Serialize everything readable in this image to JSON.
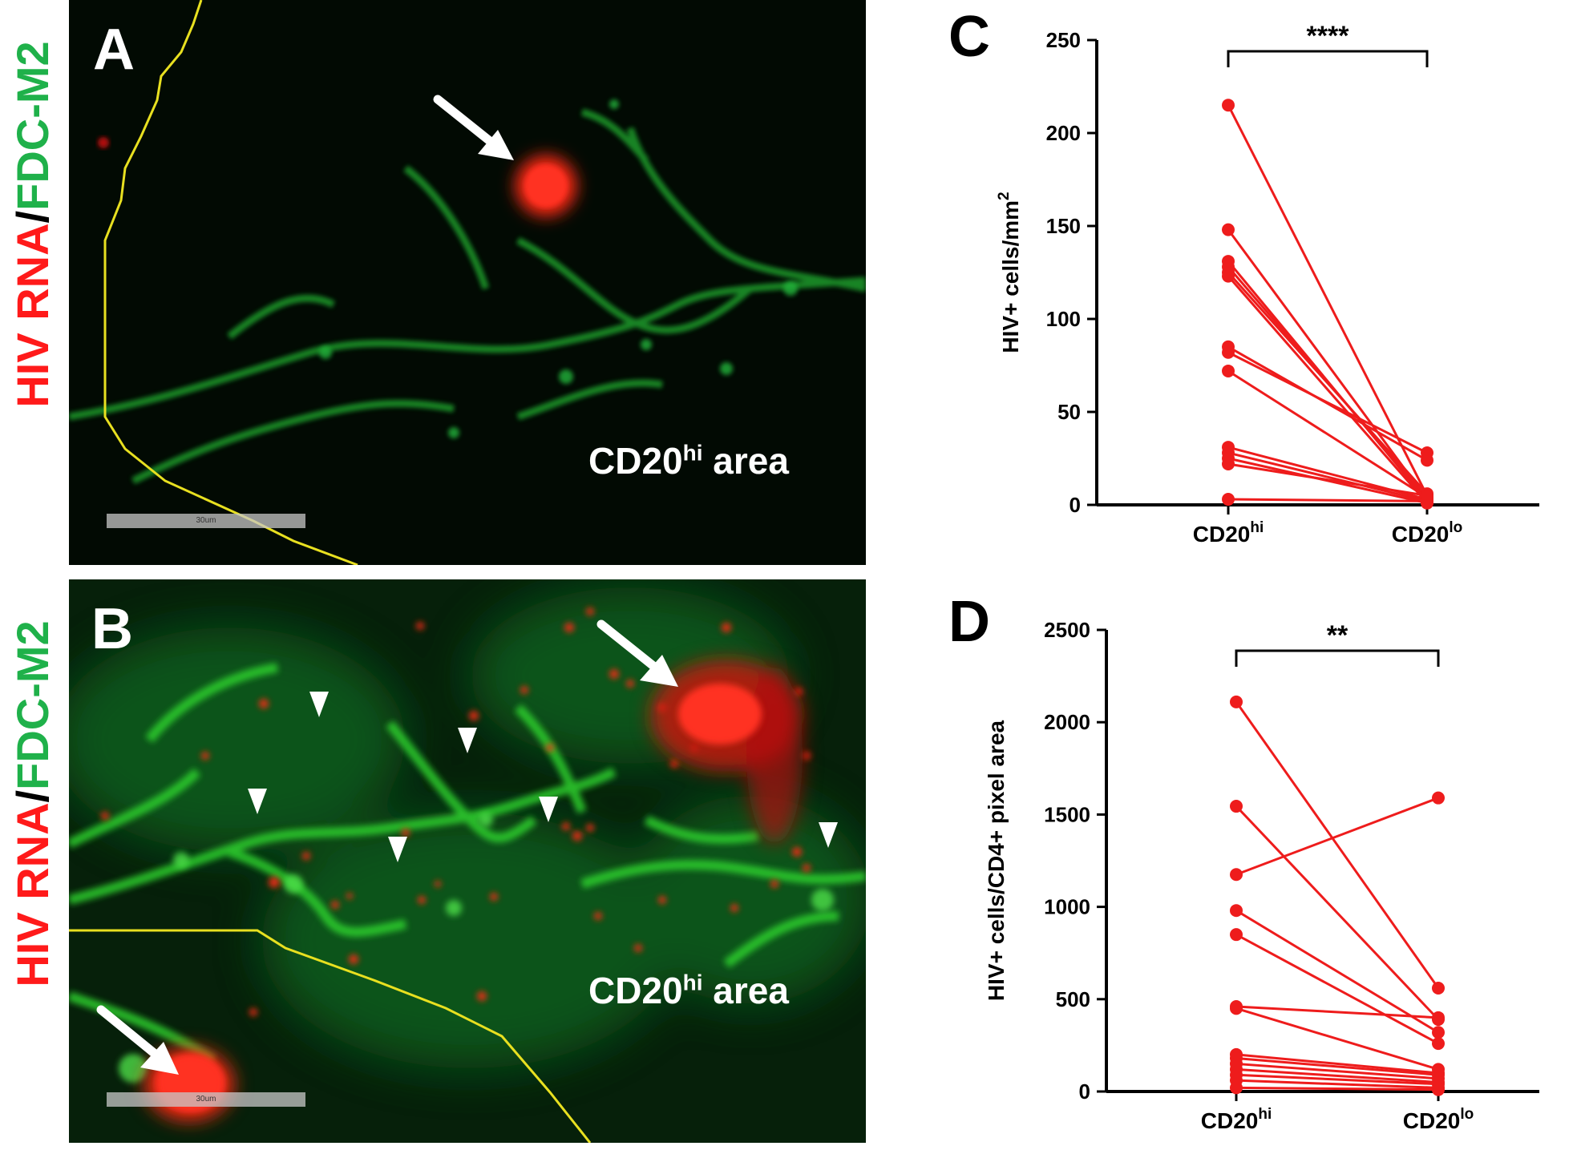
{
  "panels": {
    "A": {
      "letter": "A",
      "side_label": {
        "part1": "HIV RNA",
        "sep": "/",
        "part2": "FDC-M2"
      },
      "area_label": {
        "main": "CD20",
        "sup": "hi",
        "tail": " area"
      },
      "scalebar": "30um"
    },
    "B": {
      "letter": "B",
      "side_label": {
        "part1": "HIV RNA",
        "sep": "/",
        "part2": "FDC-M2"
      },
      "area_label": {
        "main": "CD20",
        "sup": "hi",
        "tail": " area"
      },
      "scalebar": "30um"
    },
    "C": {
      "letter": "C"
    },
    "D": {
      "letter": "D"
    }
  },
  "colors": {
    "hiv_red": "#ff1a1a",
    "fdc_green": "#1fb14a",
    "series": "#ee1c1c",
    "image_bg": "#020a03"
  },
  "chart_data": [
    {
      "panel": "C",
      "type": "line",
      "title": "",
      "xlabel": "",
      "ylabel": "HIV+ cells/mm",
      "ylabel_sup": "2",
      "categories": [
        {
          "main": "CD20",
          "sup": "hi"
        },
        {
          "main": "CD20",
          "sup": "lo"
        }
      ],
      "yticks": [
        0,
        50,
        100,
        150,
        200,
        250
      ],
      "ylim": [
        0,
        250
      ],
      "significance": "****",
      "paired_values": [
        [
          215,
          5
        ],
        [
          148,
          3
        ],
        [
          131,
          2
        ],
        [
          128,
          4
        ],
        [
          125,
          6
        ],
        [
          123,
          1
        ],
        [
          85,
          24
        ],
        [
          82,
          28
        ],
        [
          72,
          4
        ],
        [
          31,
          3
        ],
        [
          28,
          2
        ],
        [
          25,
          1
        ],
        [
          22,
          5
        ],
        [
          3,
          2
        ]
      ]
    },
    {
      "panel": "D",
      "type": "line",
      "title": "",
      "xlabel": "",
      "ylabel": "HIV+ cells/CD4+ pixel area",
      "categories": [
        {
          "main": "CD20",
          "sup": "hi"
        },
        {
          "main": "CD20",
          "sup": "lo"
        }
      ],
      "yticks": [
        0,
        500,
        1000,
        1500,
        2000,
        2500
      ],
      "ylim": [
        0,
        2500
      ],
      "significance": "**",
      "paired_values": [
        [
          2110,
          560
        ],
        [
          1545,
          390
        ],
        [
          1175,
          1590
        ],
        [
          980,
          320
        ],
        [
          850,
          260
        ],
        [
          460,
          400
        ],
        [
          450,
          120
        ],
        [
          200,
          100
        ],
        [
          180,
          90
        ],
        [
          150,
          70
        ],
        [
          120,
          50
        ],
        [
          90,
          40
        ],
        [
          60,
          20
        ],
        [
          20,
          10
        ]
      ]
    }
  ]
}
